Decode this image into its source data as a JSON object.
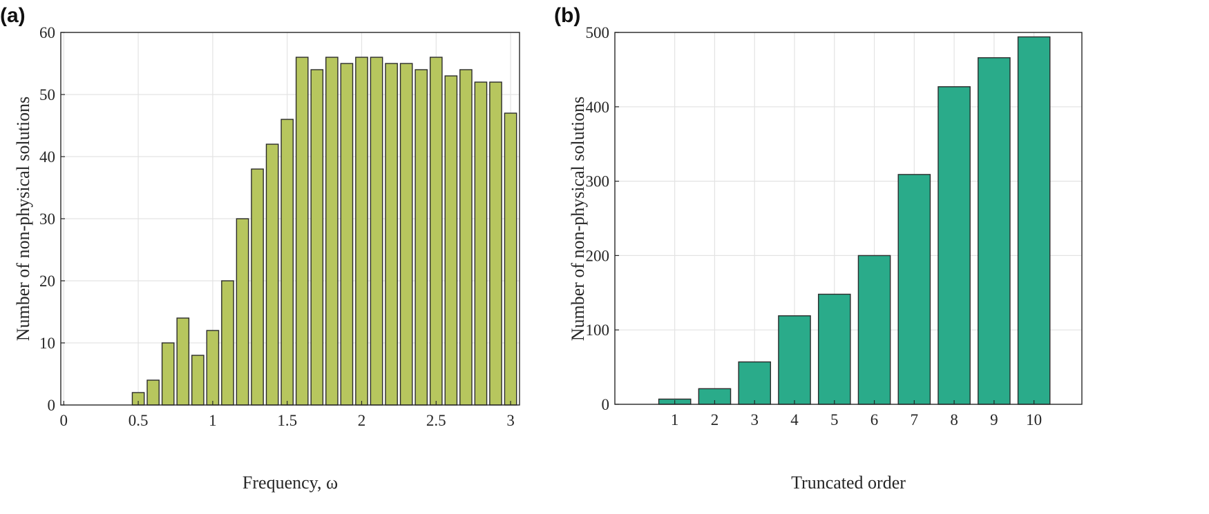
{
  "chart_data": [
    {
      "type": "bar",
      "panel_label": "(a)",
      "xlabel": "Frequency, ω",
      "ylabel": "Number of non-physical solutions",
      "x": [
        0.1,
        0.2,
        0.3,
        0.4,
        0.5,
        0.6,
        0.7,
        0.8,
        0.9,
        1.0,
        1.1,
        1.2,
        1.3,
        1.4,
        1.5,
        1.6,
        1.7,
        1.8,
        1.9,
        2.0,
        2.1,
        2.2,
        2.3,
        2.4,
        2.5,
        2.6,
        2.7,
        2.8,
        2.9,
        3.0
      ],
      "values": [
        0,
        0,
        0,
        0,
        2,
        4,
        10,
        14,
        8,
        12,
        20,
        30,
        38,
        42,
        46,
        56,
        54,
        56,
        55,
        56,
        56,
        55,
        55,
        54,
        56,
        53,
        54,
        52,
        52,
        47
      ],
      "xlim": [
        -0.02,
        3.06
      ],
      "ylim": [
        0,
        60
      ],
      "xticks": [
        "0",
        "0.5",
        "1",
        "1.5",
        "2",
        "2.5",
        "3"
      ],
      "xtick_values": [
        0,
        0.5,
        1,
        1.5,
        2,
        2.5,
        3
      ],
      "yticks": [
        "0",
        "10",
        "20",
        "30",
        "40",
        "50",
        "60"
      ],
      "ytick_values": [
        0,
        10,
        20,
        30,
        40,
        50,
        60
      ],
      "grid": true,
      "color": "#b7c65e"
    },
    {
      "type": "bar",
      "panel_label": "(b)",
      "xlabel": "Truncated order",
      "ylabel": "Number of non-physical solutions",
      "categories": [
        "1",
        "2",
        "3",
        "4",
        "5",
        "6",
        "7",
        "8",
        "9",
        "10"
      ],
      "x": [
        1,
        2,
        3,
        4,
        5,
        6,
        7,
        8,
        9,
        10
      ],
      "values": [
        7,
        21,
        57,
        119,
        148,
        200,
        309,
        427,
        466,
        494
      ],
      "xlim": [
        -0.5,
        11.2
      ],
      "ylim": [
        0,
        500
      ],
      "yticks": [
        "0",
        "100",
        "200",
        "300",
        "400",
        "500"
      ],
      "ytick_values": [
        0,
        100,
        200,
        300,
        400,
        500
      ],
      "grid": true,
      "color": "#2aab8a"
    }
  ]
}
